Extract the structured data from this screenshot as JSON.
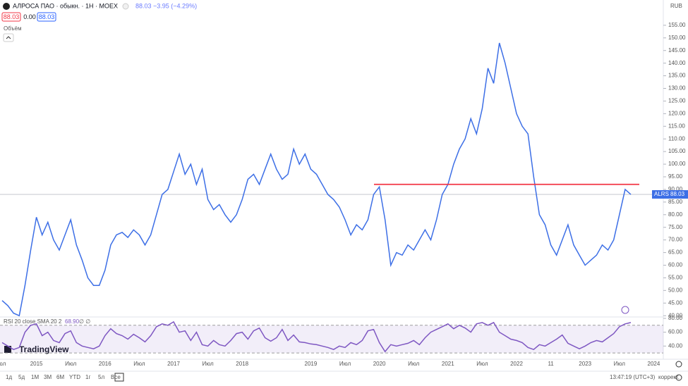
{
  "ui": {
    "symbol": "АЛРОСА ПАО · обыкн. · 1Н · MOEX",
    "change": "88.03 −3.95 (−4.29%)",
    "box_sell": "88.03",
    "box_spread": "0.00",
    "box_buy": "88.03",
    "volume": "Объём",
    "currency": "RUB",
    "rsi_legend": "RSI 20 close SMA 20 2",
    "rsi_value": "68.90",
    "rsi_extra": "∅ ∅",
    "brand": "TradingView",
    "ticker": "ALRS",
    "periods": [
      "1д",
      "5д",
      "1М",
      "3М",
      "6М",
      "YTD",
      "1г",
      "5л",
      "Все"
    ],
    "clock": "13:47:19 (UTC+3)",
    "adjust": "коррект."
  },
  "chart_data": [
    {
      "type": "line",
      "color": "#3d6fe6",
      "categories": [
        "юл",
        null,
        null,
        null,
        null,
        null,
        "2015",
        null,
        null,
        null,
        null,
        null,
        "Июл",
        null,
        null,
        null,
        null,
        null,
        "2016",
        null,
        null,
        null,
        null,
        null,
        "Июл",
        null,
        null,
        null,
        null,
        null,
        "2017",
        null,
        null,
        null,
        null,
        null,
        "Июл",
        null,
        null,
        null,
        null,
        null,
        "2018",
        null,
        null,
        null,
        null,
        null,
        null,
        null,
        null,
        null,
        null,
        null,
        "2019",
        null,
        null,
        null,
        null,
        null,
        "Июл",
        null,
        null,
        null,
        null,
        null,
        "2020",
        null,
        null,
        null,
        null,
        null,
        "Июл",
        null,
        null,
        null,
        null,
        null,
        "2021",
        null,
        null,
        null,
        null,
        null,
        "Июл",
        null,
        null,
        null,
        null,
        null,
        "2022",
        null,
        null,
        null,
        null,
        null,
        "11",
        null,
        null,
        null,
        null,
        null,
        "2023",
        null,
        null,
        null,
        null,
        null,
        "Июл",
        null,
        null,
        null,
        null,
        null,
        "2024",
        null,
        null
      ],
      "values": [
        46,
        44,
        41,
        40,
        52,
        66,
        79,
        72,
        77,
        70,
        66,
        72,
        78,
        68,
        62,
        55,
        52,
        52,
        58,
        68,
        72,
        73,
        71,
        74,
        72,
        68,
        72,
        80,
        88,
        90,
        97,
        104,
        96,
        100,
        92,
        98,
        86,
        82,
        84,
        80,
        77,
        80,
        86,
        94,
        96,
        92,
        98,
        104,
        98,
        94,
        96,
        106,
        100,
        104,
        98,
        96,
        92,
        88,
        86,
        83,
        78,
        72,
        76,
        74,
        78,
        88,
        91,
        78,
        60,
        65,
        64,
        68,
        66,
        70,
        74,
        70,
        78,
        88,
        92,
        100,
        106,
        110,
        118,
        112,
        122,
        138,
        132,
        148,
        140,
        130,
        120,
        115,
        112,
        95,
        80,
        76,
        68,
        64,
        70,
        76,
        68,
        64,
        60,
        62,
        64,
        68,
        66,
        70,
        80,
        90,
        88,
        null,
        null,
        null,
        null,
        null,
        null
      ],
      "ylim": [
        39.5,
        165
      ],
      "yticks": [
        {
          "value": 40,
          "label": "40.00"
        },
        {
          "value": 45,
          "label": "45.00"
        },
        {
          "value": 50,
          "label": "50.00"
        },
        {
          "value": 55,
          "label": "55.00"
        },
        {
          "value": 60,
          "label": "60.00"
        },
        {
          "value": 65,
          "label": "65.00"
        },
        {
          "value": 70,
          "label": "70.00"
        },
        {
          "value": 75,
          "label": "75.00"
        },
        {
          "value": 80,
          "label": "80.00"
        },
        {
          "value": 85,
          "label": "85.00"
        },
        {
          "value": 90,
          "label": "90.00"
        },
        {
          "value": 95,
          "label": "95.00"
        },
        {
          "value": 100,
          "label": "100.00"
        },
        {
          "value": 105,
          "label": "105.00"
        },
        {
          "value": 110,
          "label": "110.00"
        },
        {
          "value": 115,
          "label": "115.00"
        },
        {
          "value": 120,
          "label": "120.00"
        },
        {
          "value": 125,
          "label": "125.00"
        },
        {
          "value": 130,
          "label": "130.00"
        },
        {
          "value": 135,
          "label": "135.00"
        },
        {
          "value": 140,
          "label": "140.00"
        },
        {
          "value": 145,
          "label": "145.00"
        },
        {
          "value": 150,
          "label": "150.00"
        },
        {
          "value": 155,
          "label": "155.00"
        }
      ],
      "last_value": 88.03,
      "last_label": "88.03",
      "hline": {
        "value": 92,
        "color": "#f23645"
      }
    },
    {
      "type": "rsi",
      "color": "#7e57c2",
      "values": [
        45,
        40,
        35,
        38,
        60,
        70,
        72,
        55,
        60,
        48,
        45,
        58,
        62,
        45,
        40,
        38,
        36,
        40,
        55,
        65,
        58,
        55,
        50,
        57,
        52,
        46,
        55,
        68,
        72,
        70,
        75,
        60,
        62,
        48,
        60,
        42,
        40,
        48,
        42,
        40,
        48,
        58,
        60,
        50,
        62,
        66,
        52,
        47,
        52,
        64,
        48,
        56,
        46,
        45,
        43,
        42,
        40,
        38,
        35,
        40,
        38,
        45,
        42,
        48,
        62,
        64,
        45,
        32,
        42,
        40,
        42,
        44,
        48,
        42,
        52,
        60,
        64,
        68,
        72,
        65,
        70,
        66,
        60,
        72,
        74,
        70,
        74,
        60,
        55,
        50,
        48,
        45,
        38,
        35,
        42,
        40,
        45,
        50,
        56,
        44,
        40,
        36,
        40,
        45,
        48,
        46,
        52,
        58,
        68,
        72,
        74
      ],
      "ylim": [
        23,
        82
      ],
      "band": [
        30,
        70
      ],
      "yticks": [
        {
          "value": 40,
          "label": "40.00"
        },
        {
          "value": 60,
          "label": "60.00"
        },
        {
          "value": 80,
          "label": "80.00"
        }
      ]
    }
  ]
}
